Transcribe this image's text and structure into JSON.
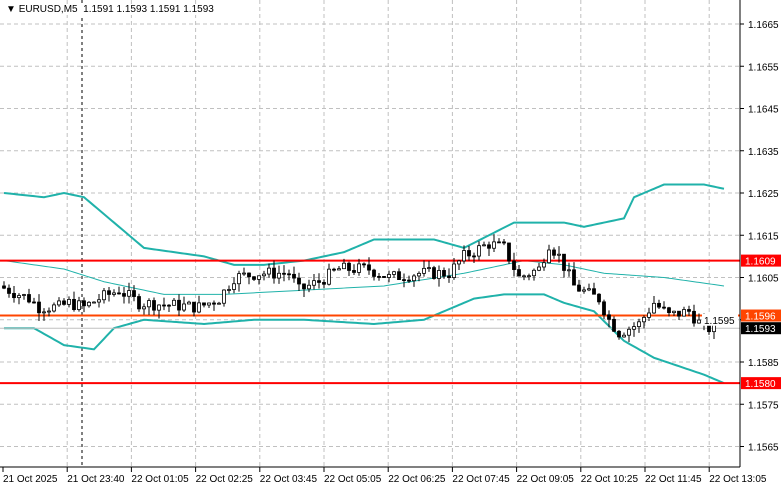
{
  "header": {
    "symbol": "EURUSD,M5",
    "ohlc": "1.1591 1.1593 1.1591 1.1593"
  },
  "chart_data": {
    "type": "candlestick",
    "title": "EURUSD,M5",
    "ylim": [
      1.156,
      1.167
    ],
    "yticks": [
      1.1665,
      1.1655,
      1.1645,
      1.1635,
      1.1625,
      1.1615,
      1.1605,
      1.1595,
      1.1585,
      1.1575,
      1.1565
    ],
    "xticks": [
      "21 Oct 2025",
      "21 Oct 23:40",
      "22 Oct 01:05",
      "22 Oct 02:25",
      "22 Oct 03:45",
      "22 Oct 05:05",
      "22 Oct 06:25",
      "22 Oct 07:45",
      "22 Oct 09:05",
      "22 Oct 10:25",
      "22 Oct 11:45",
      "22 Oct 13:05"
    ],
    "bars": 143,
    "price_path": [
      [
        0,
        1.1603
      ],
      [
        6,
        1.16
      ],
      [
        8,
        1.1598
      ],
      [
        12,
        1.1598
      ],
      [
        14,
        1.1599
      ],
      [
        17,
        1.1598
      ],
      [
        20,
        1.16
      ],
      [
        24,
        1.1602
      ],
      [
        28,
        1.1599
      ],
      [
        40,
        1.1598
      ],
      [
        44,
        1.16
      ],
      [
        47,
        1.1605
      ],
      [
        52,
        1.1606
      ],
      [
        58,
        1.1606
      ],
      [
        60,
        1.1602
      ],
      [
        64,
        1.1604
      ],
      [
        68,
        1.1607
      ],
      [
        74,
        1.1607
      ],
      [
        78,
        1.1605
      ],
      [
        84,
        1.1606
      ],
      [
        90,
        1.1606
      ],
      [
        93,
        1.161
      ],
      [
        98,
        1.1613
      ],
      [
        101,
        1.1612
      ],
      [
        104,
        1.1605
      ],
      [
        108,
        1.1607
      ],
      [
        110,
        1.1613
      ],
      [
        112,
        1.161
      ],
      [
        115,
        1.1603
      ],
      [
        118,
        1.1601
      ],
      [
        120,
        1.16
      ],
      [
        122,
        1.1595
      ],
      [
        124,
        1.1592
      ],
      [
        128,
        1.1594
      ],
      [
        131,
        1.1599
      ],
      [
        134,
        1.1596
      ],
      [
        138,
        1.1597
      ],
      [
        141,
        1.1593
      ],
      [
        142,
        1.1593
      ]
    ],
    "bollinger_upper": [
      [
        0,
        1.1625
      ],
      [
        8,
        1.1624
      ],
      [
        12,
        1.1625
      ],
      [
        16,
        1.1624
      ],
      [
        20,
        1.162
      ],
      [
        28,
        1.1612
      ],
      [
        40,
        1.161
      ],
      [
        46,
        1.1608
      ],
      [
        52,
        1.1608
      ],
      [
        60,
        1.1609
      ],
      [
        68,
        1.1611
      ],
      [
        74,
        1.1614
      ],
      [
        86,
        1.1614
      ],
      [
        92,
        1.1612
      ],
      [
        102,
        1.1618
      ],
      [
        112,
        1.1618
      ],
      [
        116,
        1.1617
      ],
      [
        124,
        1.1619
      ],
      [
        126,
        1.1624
      ],
      [
        132,
        1.1627
      ],
      [
        140,
        1.1627
      ],
      [
        144,
        1.1626
      ]
    ],
    "bollinger_middle": [
      [
        0,
        1.1609
      ],
      [
        12,
        1.1607
      ],
      [
        20,
        1.1604
      ],
      [
        32,
        1.1601
      ],
      [
        44,
        1.1601
      ],
      [
        60,
        1.1602
      ],
      [
        76,
        1.1603
      ],
      [
        92,
        1.1606
      ],
      [
        104,
        1.1609
      ],
      [
        112,
        1.1608
      ],
      [
        120,
        1.1606
      ],
      [
        132,
        1.1605
      ],
      [
        144,
        1.1603
      ]
    ],
    "bollinger_lower": [
      [
        0,
        1.1593
      ],
      [
        6,
        1.1593
      ],
      [
        12,
        1.1589
      ],
      [
        18,
        1.1588
      ],
      [
        22,
        1.1593
      ],
      [
        28,
        1.1595
      ],
      [
        40,
        1.1594
      ],
      [
        50,
        1.1595
      ],
      [
        60,
        1.1595
      ],
      [
        74,
        1.1594
      ],
      [
        84,
        1.1595
      ],
      [
        88,
        1.1597
      ],
      [
        94,
        1.16
      ],
      [
        100,
        1.1601
      ],
      [
        108,
        1.1601
      ],
      [
        112,
        1.1599
      ],
      [
        118,
        1.1597
      ],
      [
        124,
        1.159
      ],
      [
        130,
        1.1586
      ],
      [
        140,
        1.1582
      ],
      [
        144,
        1.158
      ]
    ],
    "levels": [
      {
        "price": 1.1609,
        "label": "1.1609",
        "color": "#ff0000"
      },
      {
        "price": 1.1596,
        "label": "1.1596",
        "color": "#ff4500"
      },
      {
        "price": 1.158,
        "label": "1.1580",
        "color": "#ff0000"
      }
    ],
    "bid": {
      "price": 1.1593,
      "label": "1.1593"
    },
    "day_separator_index": 16
  },
  "colors": {
    "bands": "#20b2aa",
    "grid": "#c0c0c0"
  }
}
